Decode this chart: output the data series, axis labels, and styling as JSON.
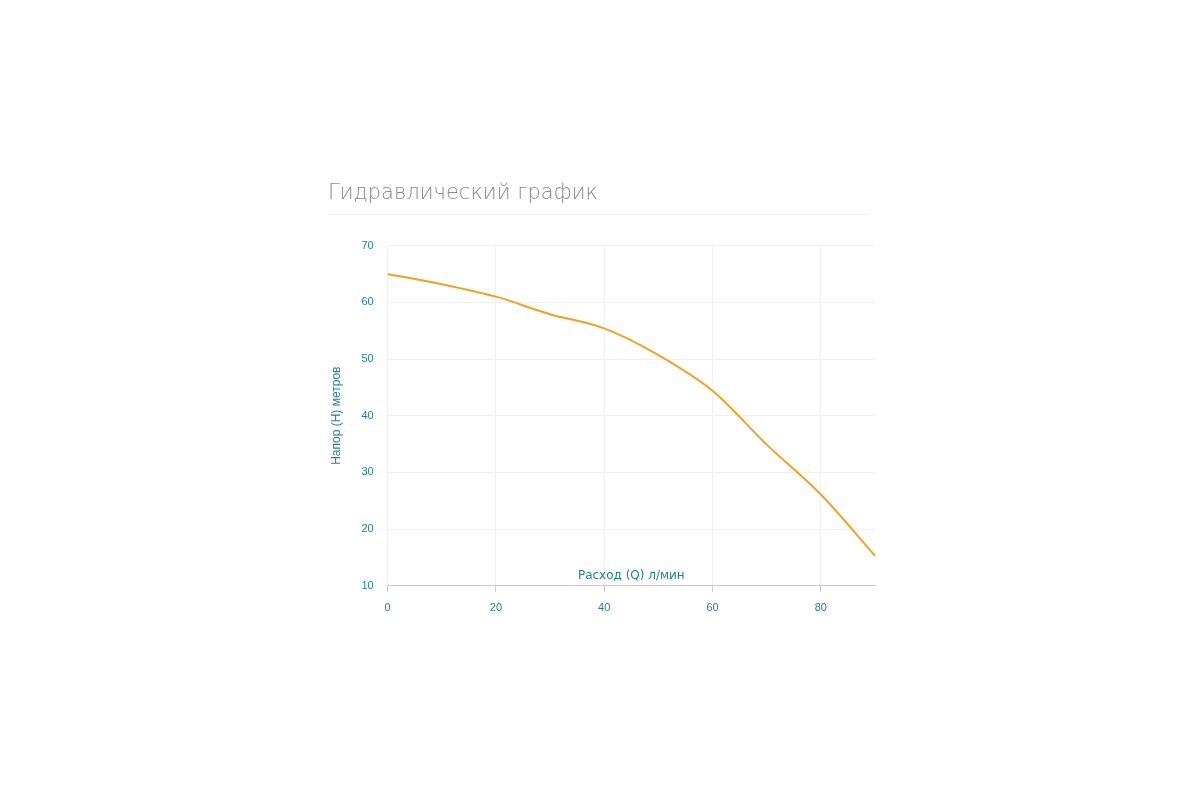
{
  "chart_data": {
    "type": "line",
    "title": "Гидравлический график",
    "xlabel": "Расход (Q) л/мин",
    "ylabel": "Напор (H) метров",
    "x": [
      0,
      10,
      20,
      30,
      40,
      50,
      60,
      70,
      80,
      90
    ],
    "series": [
      {
        "color": "#f5a01e",
        "values": [
          65,
          63.2,
          61,
          57.9,
          55.4,
          50.7,
          44.4,
          34.9,
          26.1,
          15.3
        ]
      }
    ],
    "xlim": [
      0,
      90
    ],
    "xticks": [
      0,
      20,
      40,
      60,
      80
    ],
    "ylim": [
      10,
      70
    ],
    "yticks": [
      10,
      20,
      30,
      40,
      50,
      60,
      70
    ],
    "grid": true,
    "legend": false,
    "marker": "none",
    "line_style": "solid"
  }
}
